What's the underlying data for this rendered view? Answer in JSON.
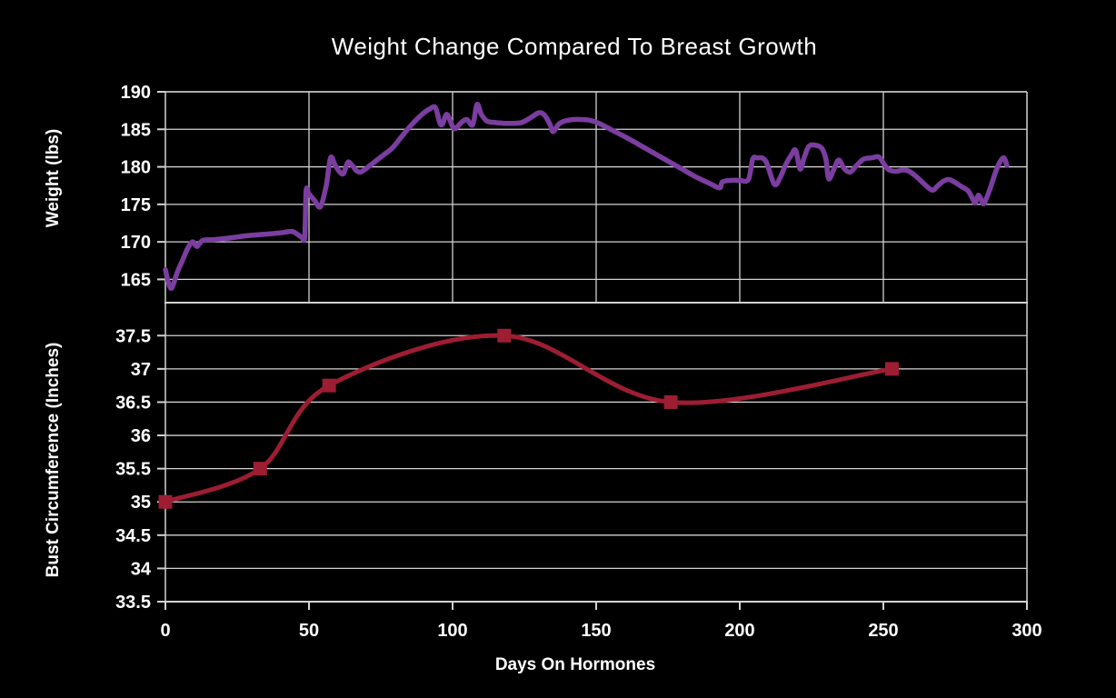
{
  "title": "Weight Change Compared To Breast Growth",
  "colors": {
    "background": "#000000",
    "text": "#ffffff",
    "grid": "#d2d2d2",
    "weight_line": "#7b3da0",
    "bust_line": "#9d1d33"
  },
  "chart_data": [
    {
      "type": "line",
      "position": "top",
      "ylabel": "Weight (lbs)",
      "xlabel": "",
      "xlim": [
        0,
        300
      ],
      "xticks": [
        0,
        50,
        100,
        150,
        200,
        250,
        300
      ],
      "x_tick_labels_shown": false,
      "ylim": [
        161.9,
        190
      ],
      "yticks": [
        165,
        170,
        175,
        180,
        185,
        190
      ],
      "grid": {
        "horizontal": true,
        "vertical": true
      },
      "series": [
        {
          "name": "Weight",
          "color": "#7b3da0",
          "marker": "none",
          "line_width": 5.5,
          "points": [
            [
              0,
              166.3
            ],
            [
              1,
              164.6
            ],
            [
              2,
              163.8
            ],
            [
              3,
              164.6
            ],
            [
              4,
              165.8
            ],
            [
              6,
              167.6
            ],
            [
              8,
              169.3
            ],
            [
              9.5,
              170.0
            ],
            [
              11,
              169.4
            ],
            [
              13,
              170.2
            ],
            [
              17,
              170.3
            ],
            [
              22,
              170.5
            ],
            [
              28,
              170.8
            ],
            [
              34,
              171.0
            ],
            [
              40,
              171.2
            ],
            [
              44,
              171.4
            ],
            [
              46,
              171.0
            ],
            [
              47.5,
              170.6
            ],
            [
              48.5,
              170.7
            ],
            [
              49,
              176.8
            ],
            [
              50,
              176.4
            ],
            [
              52,
              175.5
            ],
            [
              54,
              174.7
            ],
            [
              56,
              177.5
            ],
            [
              57.5,
              181.2
            ],
            [
              59,
              180.3
            ],
            [
              60.5,
              179.4
            ],
            [
              62,
              179.1
            ],
            [
              63.5,
              180.6
            ],
            [
              65,
              180.2
            ],
            [
              66.5,
              179.5
            ],
            [
              68,
              179.3
            ],
            [
              70,
              179.8
            ],
            [
              72,
              180.4
            ],
            [
              74,
              181.0
            ],
            [
              76,
              181.6
            ],
            [
              79,
              182.5
            ],
            [
              82,
              183.9
            ],
            [
              85,
              185.3
            ],
            [
              88,
              186.5
            ],
            [
              90,
              187.2
            ],
            [
              92,
              187.7
            ],
            [
              94,
              187.9
            ],
            [
              95.5,
              185.9
            ],
            [
              96.5,
              185.7
            ],
            [
              98,
              187.0
            ],
            [
              100,
              185.4
            ],
            [
              101,
              185.1
            ],
            [
              103,
              185.9
            ],
            [
              105,
              186.3
            ],
            [
              107,
              185.6
            ],
            [
              108.5,
              188.3
            ],
            [
              110,
              187.0
            ],
            [
              112,
              186.1
            ],
            [
              115,
              185.9
            ],
            [
              118,
              185.8
            ],
            [
              121,
              185.8
            ],
            [
              124,
              185.9
            ],
            [
              127,
              186.5
            ],
            [
              130,
              187.2
            ],
            [
              132,
              186.9
            ],
            [
              134,
              185.6
            ],
            [
              135,
              184.7
            ],
            [
              137,
              185.7
            ],
            [
              139,
              186.1
            ],
            [
              142,
              186.3
            ],
            [
              145,
              186.3
            ],
            [
              148,
              186.2
            ],
            [
              151,
              185.8
            ],
            [
              155,
              185.0
            ],
            [
              161,
              183.8
            ],
            [
              167,
              182.5
            ],
            [
              173,
              181.2
            ],
            [
              179,
              179.9
            ],
            [
              185,
              178.6
            ],
            [
              190,
              177.7
            ],
            [
              193,
              177.2
            ],
            [
              194,
              178.0
            ],
            [
              197,
              178.2
            ],
            [
              200,
              178.2
            ],
            [
              203,
              178.3
            ],
            [
              204.5,
              181.0
            ],
            [
              206,
              181.2
            ],
            [
              209,
              180.8
            ],
            [
              212,
              177.7
            ],
            [
              214,
              178.5
            ],
            [
              216,
              180.3
            ],
            [
              218,
              181.6
            ],
            [
              219.5,
              182.2
            ],
            [
              221,
              179.7
            ],
            [
              222.5,
              181.3
            ],
            [
              224,
              182.7
            ],
            [
              226,
              182.9
            ],
            [
              228.5,
              182.5
            ],
            [
              230,
              181.0
            ],
            [
              231,
              178.4
            ],
            [
              233,
              179.9
            ],
            [
              234.5,
              180.9
            ],
            [
              236.5,
              179.7
            ],
            [
              238.5,
              179.3
            ],
            [
              240.5,
              180.1
            ],
            [
              243,
              181.0
            ],
            [
              246,
              181.2
            ],
            [
              248.5,
              181.3
            ],
            [
              250.5,
              180.2
            ],
            [
              252,
              179.6
            ],
            [
              254.5,
              179.4
            ],
            [
              257,
              179.6
            ],
            [
              259,
              179.4
            ],
            [
              261.5,
              178.7
            ],
            [
              264,
              177.8
            ],
            [
              267,
              176.9
            ],
            [
              269,
              177.5
            ],
            [
              271,
              178.1
            ],
            [
              273,
              178.3
            ],
            [
              275.5,
              177.8
            ],
            [
              277.5,
              177.3
            ],
            [
              279.5,
              176.8
            ],
            [
              281,
              175.8
            ],
            [
              282,
              175.2
            ],
            [
              283,
              176.2
            ],
            [
              284,
              175.7
            ],
            [
              285,
              175.1
            ],
            [
              287,
              176.9
            ],
            [
              289,
              179.2
            ],
            [
              290.5,
              180.6
            ],
            [
              292,
              181.2
            ],
            [
              293,
              180.2
            ]
          ]
        }
      ]
    },
    {
      "type": "line",
      "position": "bottom",
      "ylabel": "Bust Circumference (Inches)",
      "xlabel": "Days On Hormones",
      "xlim": [
        0,
        300
      ],
      "xticks": [
        0,
        50,
        100,
        150,
        200,
        250,
        300
      ],
      "x_tick_labels_shown": true,
      "ylim": [
        33.5,
        37.9
      ],
      "yticks": [
        33.5,
        34,
        34.5,
        35,
        35.5,
        36,
        36.5,
        37,
        37.5
      ],
      "grid": {
        "horizontal": true,
        "vertical": false
      },
      "series": [
        {
          "name": "Bust Circumference",
          "color": "#9d1d33",
          "marker": "square",
          "marker_size": 15,
          "line_width": 5,
          "points": [
            [
              0,
              35.0
            ],
            [
              33,
              35.5
            ],
            [
              57,
              36.75
            ],
            [
              118,
              37.5
            ],
            [
              176,
              36.5
            ],
            [
              253,
              37.0
            ]
          ]
        }
      ]
    }
  ]
}
